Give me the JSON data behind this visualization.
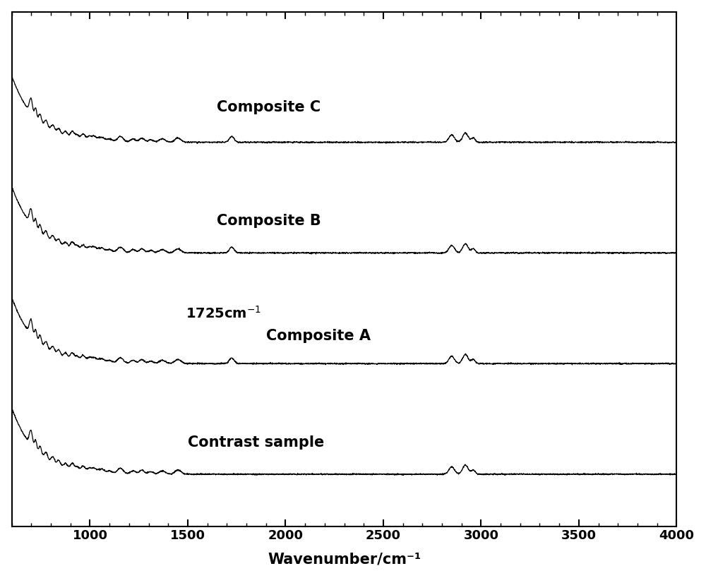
{
  "xlabel": "Wavenumber/cm⁻¹",
  "xlim": [
    600,
    4000
  ],
  "xticks": [
    1000,
    1500,
    2000,
    2500,
    3000,
    3500,
    4000
  ],
  "background_color": "#ffffff",
  "line_color": "#000000",
  "label_color": "#000000",
  "labels": [
    "Composite C",
    "Composite B",
    "Composite A",
    "Contrast sample"
  ],
  "annotation": "1725cm⁻¹",
  "offsets": [
    3.0,
    2.0,
    1.0,
    0.0
  ],
  "figsize": [
    10.0,
    8.19
  ],
  "dpi": 100,
  "spine_linewidth": 1.5,
  "tick_fontsize": 13,
  "label_fontsize": 15,
  "xlabel_fontsize": 15
}
